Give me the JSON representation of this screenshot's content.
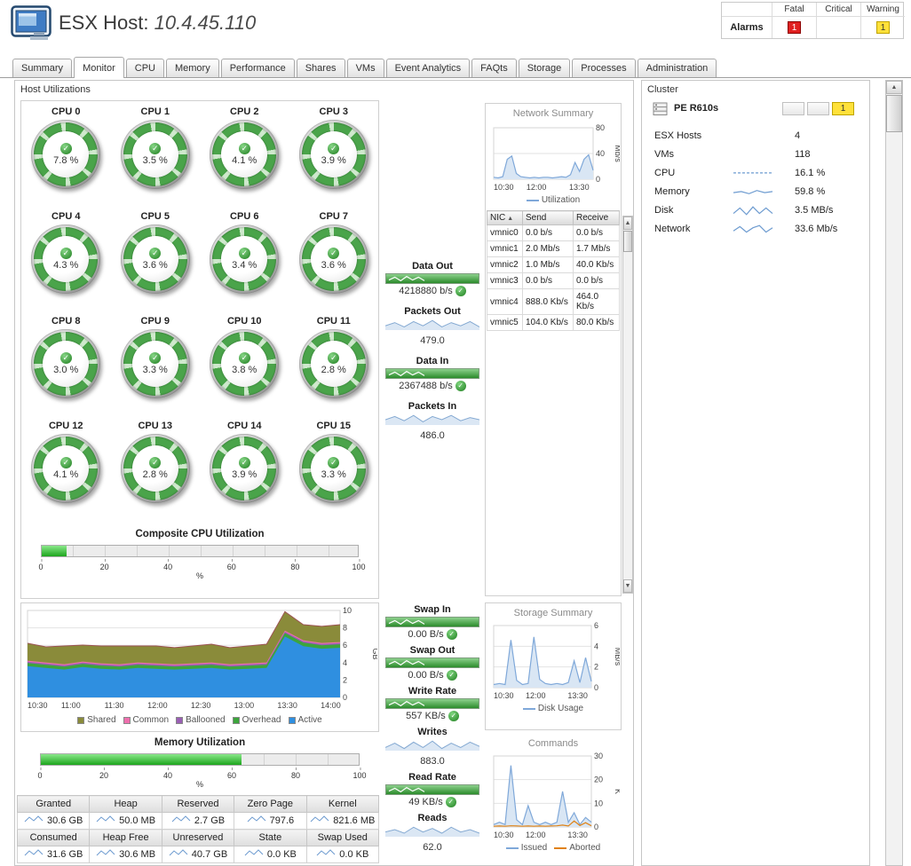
{
  "header": {
    "title_prefix": "ESX Host:",
    "host_ip": "10.4.45.110",
    "alarms": {
      "row_label": "Alarms",
      "columns": [
        "Fatal",
        "Critical",
        "Warning"
      ],
      "counts": {
        "fatal": "1",
        "critical": "",
        "warning": "1"
      },
      "colors": {
        "fatal": "#e02020",
        "warning": "#ffe13a"
      }
    }
  },
  "tabs": [
    {
      "label": "Summary",
      "active": false
    },
    {
      "label": "Monitor",
      "active": true
    },
    {
      "label": "CPU",
      "active": false
    },
    {
      "label": "Memory",
      "active": false
    },
    {
      "label": "Performance",
      "active": false
    },
    {
      "label": "Shares",
      "active": false
    },
    {
      "label": "VMs",
      "active": false
    },
    {
      "label": "Event Analytics",
      "active": false
    },
    {
      "label": "FAQts",
      "active": false
    },
    {
      "label": "Storage",
      "active": false
    },
    {
      "label": "Processes",
      "active": false
    },
    {
      "label": "Administration",
      "active": false
    }
  ],
  "host_utilizations": {
    "title": "Host Utilizations",
    "cpus": [
      {
        "name": "CPU 0",
        "value": "7.8 %"
      },
      {
        "name": "CPU 1",
        "value": "3.5 %"
      },
      {
        "name": "CPU 2",
        "value": "4.1 %"
      },
      {
        "name": "CPU 3",
        "value": "3.9 %"
      },
      {
        "name": "CPU 4",
        "value": "4.3 %"
      },
      {
        "name": "CPU 5",
        "value": "3.6 %"
      },
      {
        "name": "CPU 6",
        "value": "3.4 %"
      },
      {
        "name": "CPU 7",
        "value": "3.6 %"
      },
      {
        "name": "CPU 8",
        "value": "3.0 %"
      },
      {
        "name": "CPU 9",
        "value": "3.3 %"
      },
      {
        "name": "CPU 10",
        "value": "3.8 %"
      },
      {
        "name": "CPU 11",
        "value": "2.8 %"
      },
      {
        "name": "CPU 12",
        "value": "4.1 %"
      },
      {
        "name": "CPU 13",
        "value": "2.8 %"
      },
      {
        "name": "CPU 14",
        "value": "3.9 %"
      },
      {
        "name": "CPU 15",
        "value": "3.3 %"
      }
    ],
    "composite_cpu": {
      "title": "Composite CPU Utilization",
      "percent": 8,
      "ticks": [
        "0",
        "20",
        "40",
        "60",
        "80",
        "100"
      ],
      "unit": "%"
    },
    "memory_utilization": {
      "title": "Memory Utilization",
      "percent": 63,
      "ticks": [
        "0",
        "20",
        "40",
        "60",
        "80",
        "100"
      ],
      "unit": "%"
    },
    "metrics_top": [
      {
        "label": "Data Out",
        "type": "bar",
        "value": "4218880 b/s",
        "check": true,
        "zigzag": [
          3,
          7,
          2,
          8,
          3,
          7,
          2
        ]
      },
      {
        "label": "Packets Out",
        "type": "spark",
        "value": "479.0",
        "spark": [
          4,
          7,
          3,
          8,
          4,
          9,
          3,
          7,
          4,
          8,
          3
        ]
      },
      {
        "label": "Data In",
        "type": "bar",
        "value": "2367488 b/s",
        "check": true,
        "zigzag": [
          3,
          7,
          2,
          8,
          3,
          7,
          2
        ]
      },
      {
        "label": "Packets In",
        "type": "spark",
        "value": "486.0",
        "spark": [
          5,
          8,
          4,
          9,
          3,
          8,
          5,
          9,
          4,
          7,
          5
        ]
      }
    ],
    "metrics_bottom": [
      {
        "label": "Swap In",
        "type": "bar",
        "value": "0.00 B/s",
        "check": true,
        "zigzag": [
          3,
          7,
          2,
          8,
          3,
          7,
          2
        ]
      },
      {
        "label": "Swap Out",
        "type": "bar",
        "value": "0.00 B/s",
        "check": true,
        "zigzag": [
          3,
          7,
          2,
          8,
          3,
          7,
          2
        ]
      },
      {
        "label": "Write Rate",
        "type": "bar",
        "value": "557 KB/s",
        "check": true,
        "zigzag": [
          3,
          7,
          2,
          8,
          3,
          7,
          2
        ]
      },
      {
        "label": "Writes",
        "type": "spark",
        "value": "883.0",
        "spark": [
          3,
          7,
          2,
          8,
          3,
          9,
          2,
          7,
          3,
          8,
          4
        ]
      },
      {
        "label": "Read Rate",
        "type": "bar",
        "value": "49 KB/s",
        "check": true,
        "zigzag": [
          3,
          7,
          2,
          8,
          3,
          7,
          2
        ]
      },
      {
        "label": "Reads",
        "type": "spark",
        "value": "62.0",
        "spark": [
          4,
          6,
          3,
          8,
          4,
          7,
          3,
          8,
          4,
          6,
          3
        ]
      }
    ],
    "network_summary": {
      "title": "Network Summary",
      "chart": {
        "type": "line",
        "ylabel": "Mb/s",
        "ymax": 80,
        "yticks": [
          0,
          40,
          80
        ],
        "xticks": [
          "10:30",
          "12:00",
          "13:30"
        ],
        "xspan": 0.86,
        "series": [
          {
            "name": "Utilization",
            "color": "#7fa8d9",
            "fill": "#d9e6f4",
            "values": [
              3,
              2,
              4,
              31,
              36,
              9,
              4,
              3,
              2,
              3,
              2,
              3,
              3,
              2,
              3,
              4,
              3,
              7,
              26,
              12,
              31,
              38,
              14
            ]
          }
        ]
      },
      "legend": [
        {
          "label": "Utilization",
          "color": "#7fa8d9"
        }
      ],
      "nic_table": {
        "columns": [
          "NIC",
          "Send",
          "Receive"
        ],
        "sorted_by": "NIC",
        "rows": [
          [
            "vmnic0",
            "0.0 b/s",
            "0.0 b/s"
          ],
          [
            "vmnic1",
            "2.0 Mb/s",
            "1.7 Mb/s"
          ],
          [
            "vmnic2",
            "1.0 Mb/s",
            "40.0 Kb/s"
          ],
          [
            "vmnic3",
            "0.0 b/s",
            "0.0 b/s"
          ],
          [
            "vmnic4",
            "888.0 Kb/s",
            "464.0 Kb/s"
          ],
          [
            "vmnic5",
            "104.0 Kb/s",
            "80.0 Kb/s"
          ]
        ]
      }
    },
    "memory_chart": {
      "type": "area",
      "ylabel": "GB",
      "ymax": 10,
      "yticks": [
        0,
        2,
        4,
        6,
        8,
        10
      ],
      "xticks": [
        "10:30",
        "11:00",
        "11:30",
        "12:00",
        "12:30",
        "13:00",
        "13:30",
        "14:00"
      ],
      "xspan": 0.97,
      "series": [
        {
          "name": "Active",
          "color": "#2f8fe0",
          "values": [
            3.6,
            3.4,
            3.2,
            3.5,
            3.3,
            3.2,
            3.4,
            3.3,
            3.2,
            3.3,
            3.4,
            3.2,
            3.3,
            3.4,
            7.0,
            5.9,
            5.6,
            5.7
          ]
        },
        {
          "name": "Overhead",
          "color": "#3ca53c",
          "values": [
            0.35,
            0.35,
            0.35,
            0.35,
            0.35,
            0.35,
            0.35,
            0.35,
            0.35,
            0.35,
            0.35,
            0.35,
            0.35,
            0.35,
            0.4,
            0.4,
            0.4,
            0.4
          ]
        },
        {
          "name": "Ballooned",
          "color": "#9a5fb5",
          "values": [
            0.15,
            0.15,
            0.15,
            0.15,
            0.15,
            0.15,
            0.15,
            0.15,
            0.15,
            0.15,
            0.15,
            0.15,
            0.15,
            0.15,
            0.15,
            0.15,
            0.15,
            0.15
          ]
        },
        {
          "name": "Common",
          "color": "#ef6fae",
          "values": [
            0.12,
            0.12,
            0.12,
            0.12,
            0.12,
            0.12,
            0.12,
            0.12,
            0.12,
            0.12,
            0.12,
            0.12,
            0.12,
            0.12,
            0.12,
            0.12,
            0.12,
            0.12
          ]
        },
        {
          "name": "Shared",
          "color": "#8a8b3a",
          "values": [
            2.0,
            1.8,
            2.1,
            1.9,
            2.0,
            2.1,
            1.9,
            2.0,
            1.9,
            2.0,
            2.1,
            1.9,
            2.0,
            2.1,
            2.2,
            1.8,
            1.9,
            2.0
          ]
        }
      ],
      "legend": [
        {
          "label": "Shared",
          "color": "#8a8b3a"
        },
        {
          "label": "Common",
          "color": "#ef6fae"
        },
        {
          "label": "Ballooned",
          "color": "#9a5fb5"
        },
        {
          "label": "Overhead",
          "color": "#3ca53c"
        },
        {
          "label": "Active",
          "color": "#2f8fe0"
        }
      ]
    },
    "memory_table": {
      "spark": [
        2,
        7,
        3,
        8,
        3
      ],
      "rows": [
        {
          "headers": [
            "Granted",
            "Heap",
            "Reserved",
            "Zero Page",
            "Kernel"
          ],
          "values": [
            "30.6 GB",
            "50.0 MB",
            "2.7 GB",
            "797.6",
            "821.6 MB"
          ]
        },
        {
          "headers": [
            "Consumed",
            "Heap Free",
            "Unreserved",
            "State",
            "Swap Used"
          ],
          "values": [
            "31.6 GB",
            "30.6 MB",
            "40.7 GB",
            "0.0 KB",
            "0.0 KB"
          ]
        }
      ]
    },
    "storage_summary": {
      "title": "Storage Summary",
      "chart": {
        "type": "line",
        "ylabel": "MB/s",
        "ymax": 6,
        "yticks": [
          0,
          2,
          4,
          6
        ],
        "xticks": [
          "10:30",
          "12:00",
          "13:30"
        ],
        "xspan": 0.86,
        "series": [
          {
            "name": "Disk Usage",
            "color": "#7fa8d9",
            "fill": "#d9e6f4",
            "values": [
              0.3,
              0.4,
              0.3,
              4.6,
              0.7,
              0.3,
              0.4,
              4.9,
              0.8,
              0.4,
              0.3,
              0.4,
              0.3,
              0.5,
              2.6,
              0.5,
              2.9,
              0.6
            ]
          }
        ]
      },
      "legend": [
        {
          "label": "Disk Usage",
          "color": "#7fa8d9"
        }
      ]
    },
    "commands": {
      "title": "Commands",
      "chart": {
        "type": "line",
        "ylabel": "K",
        "ymax": 30,
        "yticks": [
          0,
          10,
          20,
          30
        ],
        "xticks": [
          "10:30",
          "12:00",
          "13:30"
        ],
        "xspan": 0.86,
        "series": [
          {
            "name": "Issued",
            "color": "#7fa8d9",
            "fill": "#d9e6f4",
            "values": [
              1,
              2,
              1,
              26,
              3,
              1,
              9,
              2,
              1,
              2,
              1,
              2,
              15,
              2,
              6,
              1,
              4,
              2
            ]
          },
          {
            "name": "Aborted",
            "color": "#e08214",
            "values": [
              0.3,
              0.4,
              0.3,
              0.5,
              0.4,
              0.3,
              0.4,
              0.3,
              0.4,
              0.3,
              0.4,
              0.5,
              0.8,
              0.4,
              2.5,
              0.6,
              1.8,
              0.5
            ]
          }
        ]
      },
      "legend": [
        {
          "label": "Issued",
          "color": "#7fa8d9"
        },
        {
          "label": "Aborted",
          "color": "#e08214"
        }
      ]
    }
  },
  "cluster": {
    "title": "Cluster",
    "host": {
      "name": "PE R610s",
      "alarm_boxes": [
        {
          "count": "",
          "type": "none"
        },
        {
          "count": "",
          "type": "none"
        },
        {
          "count": "1",
          "type": "warning"
        }
      ]
    },
    "stats": [
      {
        "label": "ESX Hosts",
        "value": "4"
      },
      {
        "label": "VMs",
        "value": "118"
      },
      {
        "label": "CPU",
        "value": "16.1 %",
        "spark": [
          5,
          5,
          5,
          5,
          5,
          5
        ],
        "dash": true
      },
      {
        "label": "Memory",
        "value": "59.8 %",
        "spark": [
          4,
          5,
          3,
          6,
          4,
          5
        ]
      },
      {
        "label": "Disk",
        "value": "3.5 MB/s",
        "spark": [
          2,
          7,
          1,
          8,
          2,
          7,
          2
        ]
      },
      {
        "label": "Network",
        "value": "33.6 Mb/s",
        "spark": [
          3,
          7,
          2,
          6,
          8,
          2,
          6
        ]
      }
    ]
  }
}
